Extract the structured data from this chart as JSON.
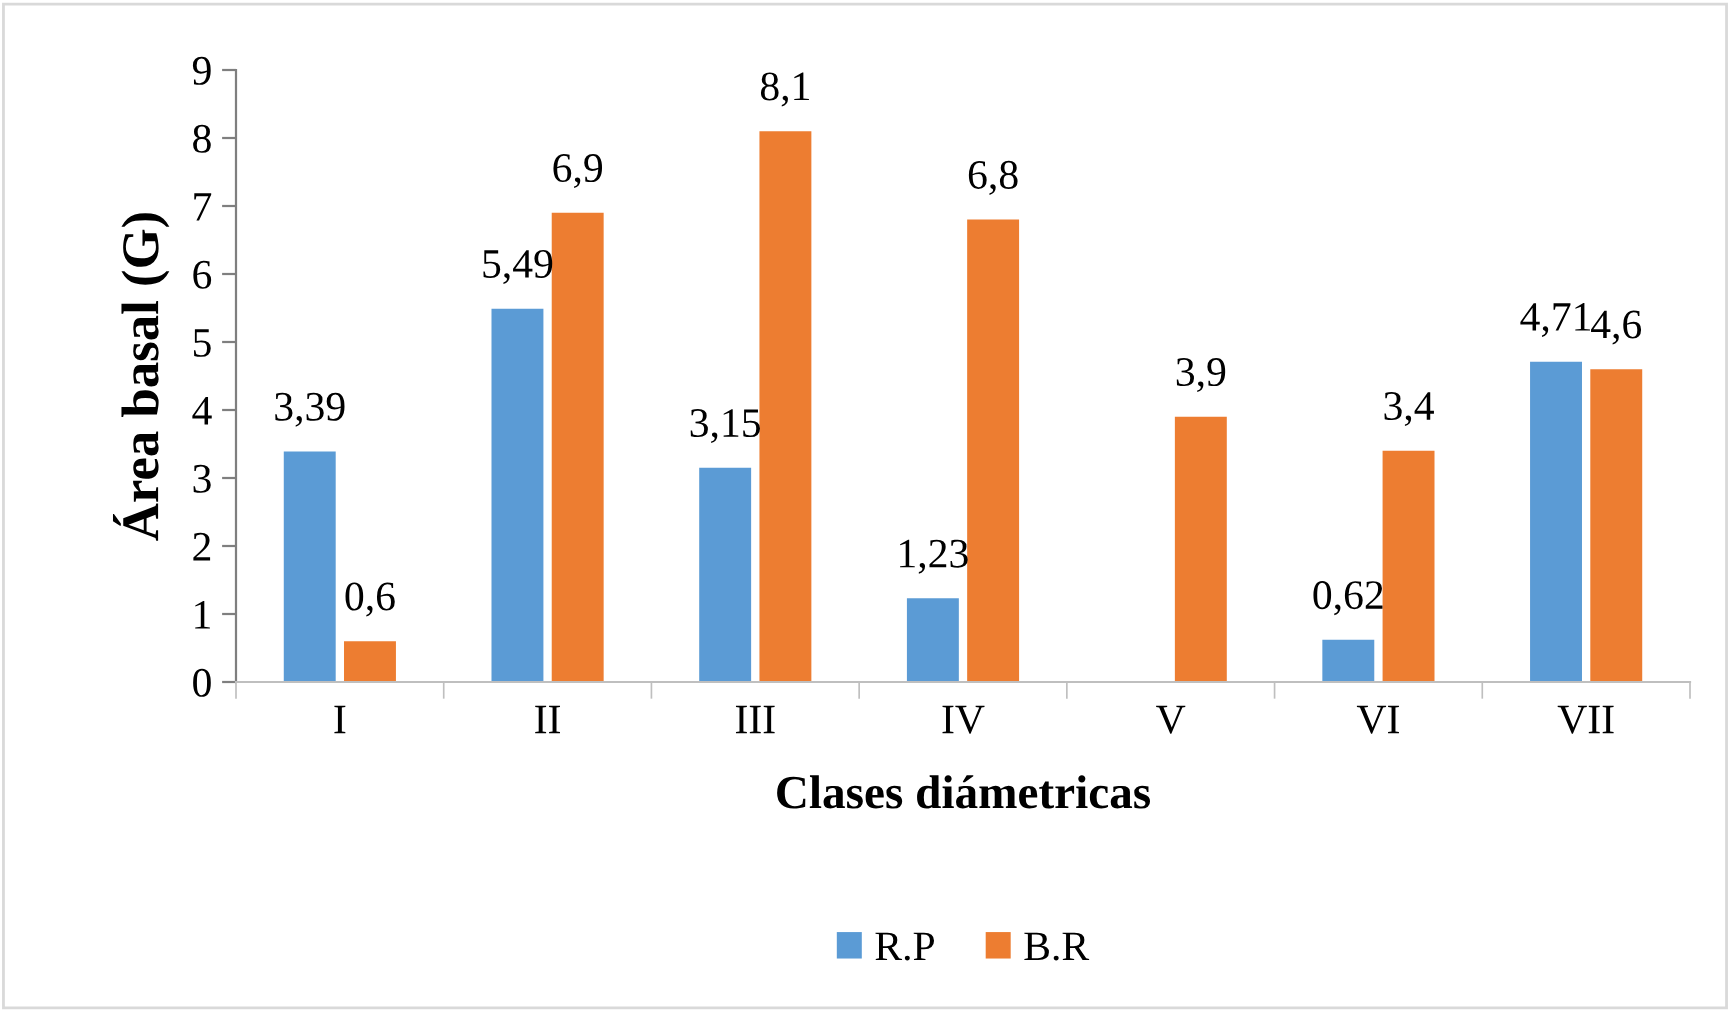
{
  "chart_data": {
    "type": "bar",
    "xlabel": "Clases diámetricas",
    "ylabel": "Área basal (G)",
    "categories": [
      "I",
      "II",
      "III",
      "IV",
      "V",
      "VI",
      "VII"
    ],
    "series": [
      {
        "name": "R.P",
        "color": "#5b9bd5",
        "values": [
          3.39,
          5.49,
          3.15,
          1.23,
          null,
          0.62,
          4.71
        ],
        "value_labels": [
          "3,39",
          "5,49",
          "3,15",
          "1,23",
          null,
          "0,62",
          "4,71"
        ]
      },
      {
        "name": "B.R",
        "color": "#ed7d31",
        "values": [
          0.6,
          6.9,
          8.1,
          6.8,
          3.9,
          3.4,
          4.6
        ],
        "value_labels": [
          "0,6",
          "6,9",
          "8,1",
          "6,8",
          "3,9",
          "3,4",
          "4,6"
        ]
      }
    ],
    "ylim": [
      0,
      9
    ],
    "yticks": [
      0,
      1,
      2,
      3,
      4,
      5,
      6,
      7,
      8,
      9
    ],
    "grid": false,
    "legend": "bottom"
  }
}
